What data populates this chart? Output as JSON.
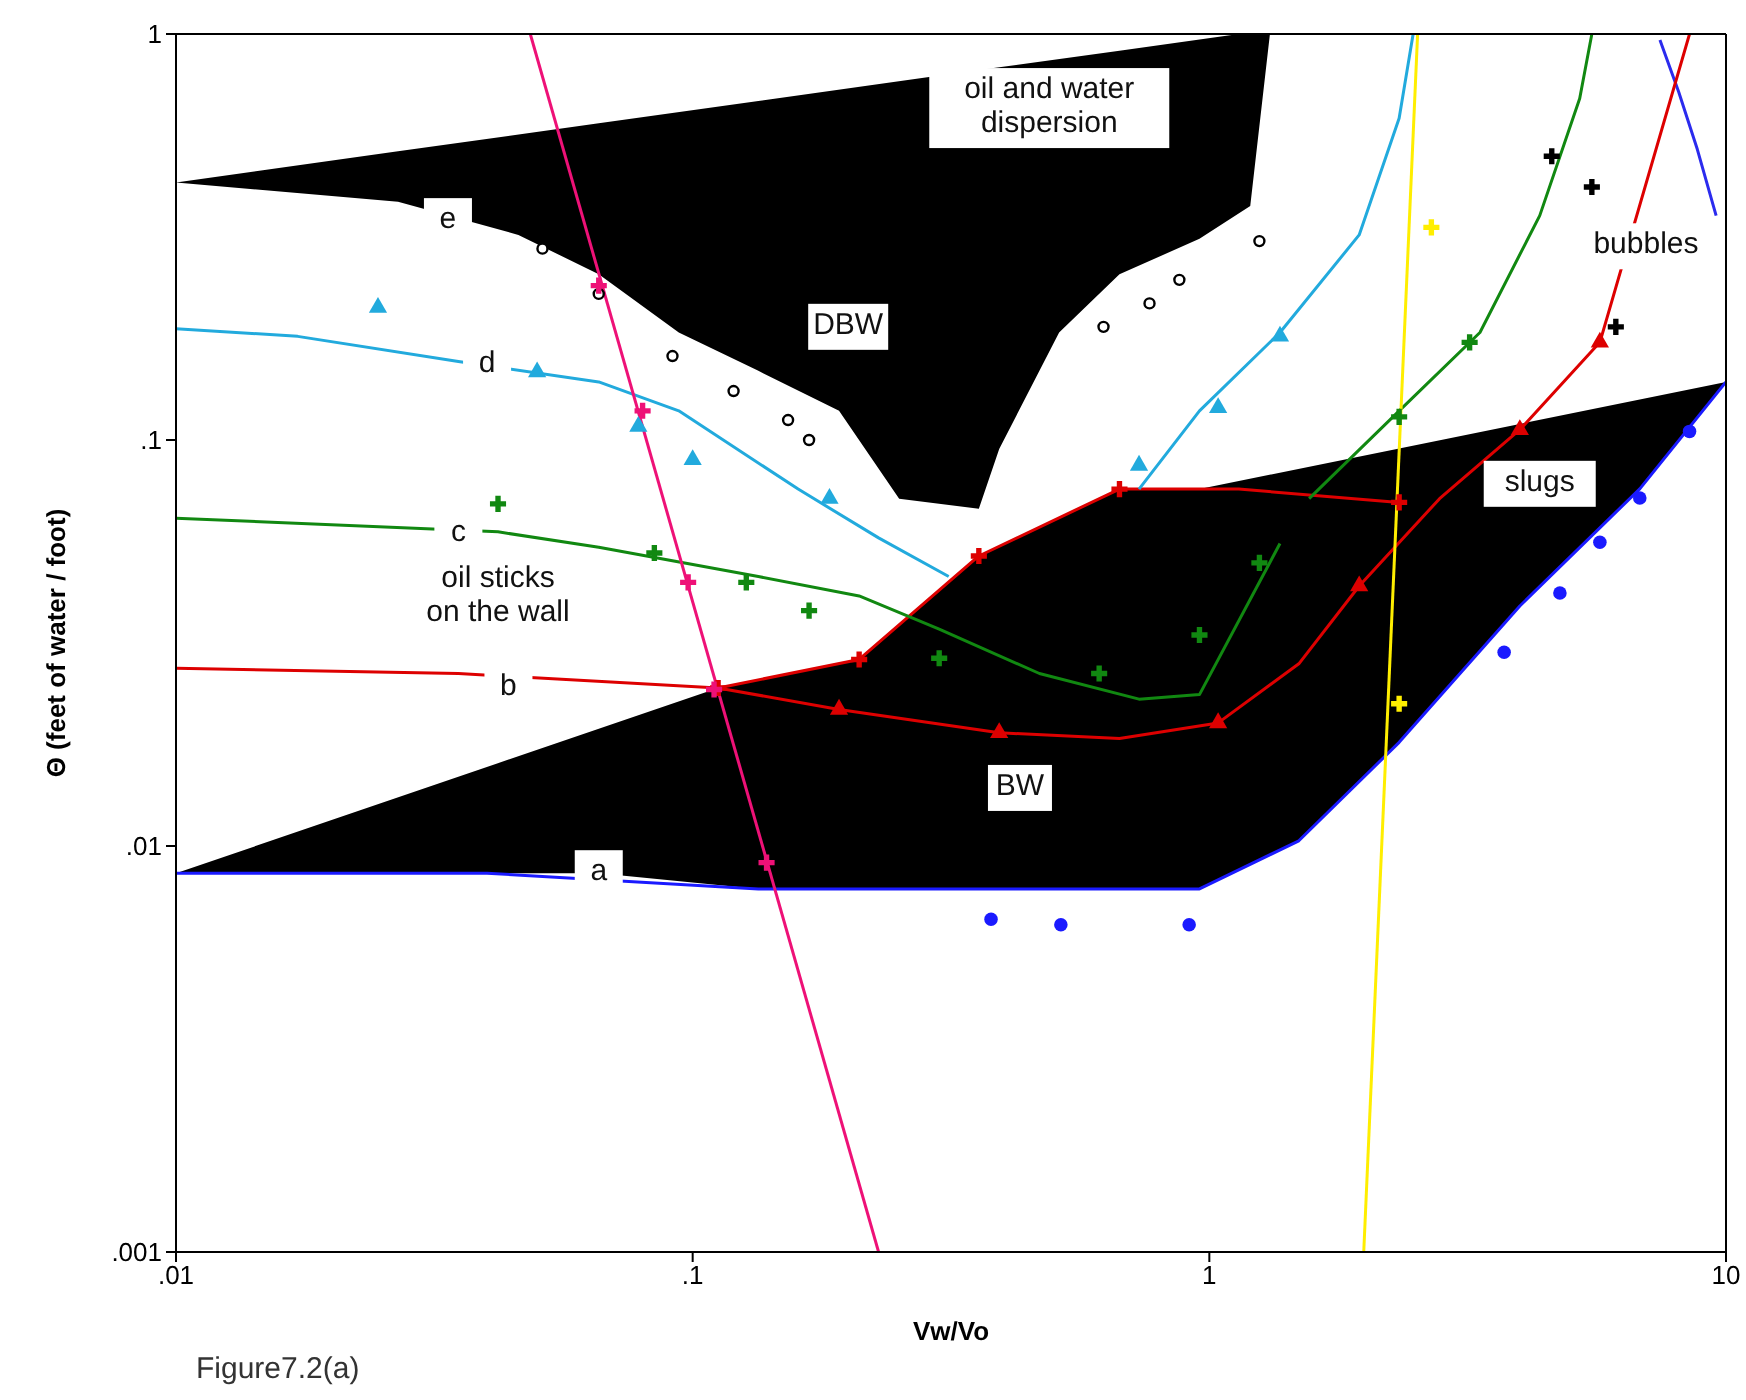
{
  "chart_data": {
    "type": "line",
    "xlabel": "Vw/Vo",
    "ylabel": "Θ   (feet of water / foot)",
    "log": "xy",
    "grid": false,
    "legend": false,
    "xlim": [
      0.01,
      10
    ],
    "ylim": [
      0.001,
      1
    ],
    "xticks": [
      {
        "value": 0.01,
        "label": ".01"
      },
      {
        "value": 0.1,
        "label": ".1"
      },
      {
        "value": 1,
        "label": "1"
      },
      {
        "value": 10,
        "label": "10"
      }
    ],
    "yticks": [
      {
        "value": 0.001,
        "label": ".001"
      },
      {
        "value": 0.01,
        "label": ".01"
      },
      {
        "value": 0.1,
        "label": ".1"
      },
      {
        "value": 1,
        "label": "1"
      }
    ],
    "series": [
      {
        "color": "#1a1aff",
        "x": [
          0.01,
          0.04,
          0.134,
          0.957,
          1.49,
          2.33,
          3.99,
          6.81,
          10
        ],
        "values": [
          0.00857,
          0.00857,
          0.00784,
          0.00784,
          0.0103,
          0.018,
          0.039,
          0.0758,
          0.139
        ]
      },
      {
        "color": "#2b2bee",
        "x": [
          7.45,
          8.1,
          8.8,
          9.57
        ],
        "values": [
          0.967,
          0.72,
          0.52,
          0.357
        ]
      },
      {
        "type": "scatter",
        "marker": "circle",
        "color": "#1a1aff",
        "x": [
          0.378,
          0.516,
          0.914,
          3.72,
          4.77,
          5.7,
          6.81,
          8.5
        ],
        "values": [
          0.0066,
          0.0064,
          0.0064,
          0.03,
          0.042,
          0.056,
          0.072,
          0.105
        ]
      },
      {
        "color": "#dd0000",
        "x": [
          0.01,
          0.0352,
          0.112,
          0.21,
          0.358,
          0.67,
          1.14,
          2.33
        ],
        "values": [
          0.0274,
          0.0266,
          0.0245,
          0.0288,
          0.0518,
          0.0757,
          0.0757,
          0.0702
        ]
      },
      {
        "type": "scatter",
        "marker": "cross",
        "color": "#dd0000",
        "x": [
          0.112,
          0.21,
          0.358,
          0.67,
          2.33
        ],
        "values": [
          0.0245,
          0.0288,
          0.0518,
          0.0757,
          0.0702
        ]
      },
      {
        "color": "#dd0000",
        "x": [
          0.112,
          0.192,
          0.392,
          0.67,
          1.04,
          1.49,
          1.95,
          2.79,
          3.99,
          5.7,
          8.5
        ],
        "values": [
          0.0245,
          0.0217,
          0.019,
          0.0184,
          0.0201,
          0.0281,
          0.0437,
          0.0717,
          0.106,
          0.174,
          1
        ]
      },
      {
        "type": "scatter",
        "marker": "triangle",
        "color": "#dd0000",
        "x": [
          0.192,
          0.392,
          1.04,
          1.95,
          3.99,
          5.7
        ],
        "values": [
          0.0217,
          0.019,
          0.0201,
          0.0437,
          0.106,
          0.174
        ]
      },
      {
        "color": "#118811",
        "x": [
          0.01,
          0.042,
          0.0658,
          0.134,
          0.21,
          0.3,
          0.469,
          0.731,
          0.957,
          1.37
        ],
        "values": [
          0.0642,
          0.0594,
          0.0544,
          0.0461,
          0.0413,
          0.0342,
          0.0266,
          0.023,
          0.0236,
          0.0556
        ]
      },
      {
        "color": "#118811",
        "x": [
          1.56,
          2.33,
          3.34,
          4.36,
          5.21,
          5.5
        ],
        "values": [
          0.0717,
          0.118,
          0.184,
          0.357,
          0.694,
          1
        ]
      },
      {
        "type": "scatter",
        "marker": "cross",
        "color": "#118811",
        "x": [
          0.042,
          0.0843,
          0.127,
          0.168,
          0.3,
          0.612,
          0.957,
          1.25,
          2.33,
          3.19
        ],
        "values": [
          0.0696,
          0.0527,
          0.0446,
          0.038,
          0.029,
          0.0266,
          0.0331,
          0.0498,
          0.114,
          0.174
        ]
      },
      {
        "color": "#22aadd",
        "x": [
          0.01,
          0.0172,
          0.0352,
          0.0658,
          0.094,
          0.16,
          0.229,
          0.313
        ],
        "values": [
          0.188,
          0.18,
          0.156,
          0.139,
          0.118,
          0.0757,
          0.0574,
          0.0461
        ]
      },
      {
        "color": "#22aadd",
        "x": [
          0.731,
          0.957,
          1.37,
          1.95,
          2.33,
          2.48
        ],
        "values": [
          0.0757,
          0.118,
          0.184,
          0.32,
          0.62,
          1
        ]
      },
      {
        "type": "scatter",
        "marker": "triangle",
        "color": "#22aadd",
        "x": [
          0.0246,
          0.05,
          0.0785,
          0.1,
          0.184,
          0.731,
          1.04,
          1.37
        ],
        "values": [
          0.212,
          0.147,
          0.108,
          0.0894,
          0.0718,
          0.0866,
          0.12,
          0.18
        ]
      },
      {
        "type": "scatter",
        "marker": "circle",
        "color": "#000000",
        "x": [
          0.0512,
          0.0658,
          0.0914,
          0.12,
          0.153,
          0.168,
          0.624,
          0.766,
          0.875,
          1.25
        ],
        "values": [
          0.296,
          0.229,
          0.161,
          0.132,
          0.112,
          0.1,
          0.19,
          0.217,
          0.248,
          0.309
        ]
      },
      {
        "color": "#ee1177",
        "x": [
          0.0485,
          0.229
        ],
        "values": [
          1,
          0.001
        ]
      },
      {
        "type": "scatter",
        "marker": "cross",
        "color": "#ee1177",
        "x": [
          0.0658,
          0.08,
          0.098,
          0.11,
          0.139
        ],
        "values": [
          0.24,
          0.118,
          0.0446,
          0.0243,
          0.0091
        ]
      },
      {
        "color": "#ffee00",
        "x": [
          2.53,
          1.99
        ],
        "values": [
          1,
          0.001
        ]
      },
      {
        "type": "scatter",
        "marker": "cross",
        "color": "#ffee00",
        "x": [
          2.69,
          2.33
        ],
        "values": [
          0.334,
          0.0224
        ]
      },
      {
        "type": "scatter",
        "marker": "cross",
        "color": "#000000",
        "x": [
          4.6,
          5.5,
          6.12
        ],
        "values": [
          0.5,
          0.42,
          0.19
        ]
      }
    ],
    "annotations": [
      "oil and water\ndispersion",
      {
        "text": "DBW",
        "x": 0.2,
        "y": 0.19
      },
      {
        "text": "BW",
        "x": 0.43,
        "y": 0.0139
      },
      "slugs",
      "bubbles",
      "oil sticks\non the wall",
      {
        "text": "e",
        "x": 0.0336,
        "y": 0.346
      },
      {
        "text": "d",
        "x": 0.04,
        "y": 0.153
      },
      {
        "text": "c",
        "x": 0.0352,
        "y": 0.0588
      },
      {
        "text": "b",
        "x": 0.044,
        "y": 0.0245
      },
      {
        "text": "a",
        "x": 0.0658,
        "y": 0.00857
      },
      "Figure7.2(a)"
    ]
  }
}
